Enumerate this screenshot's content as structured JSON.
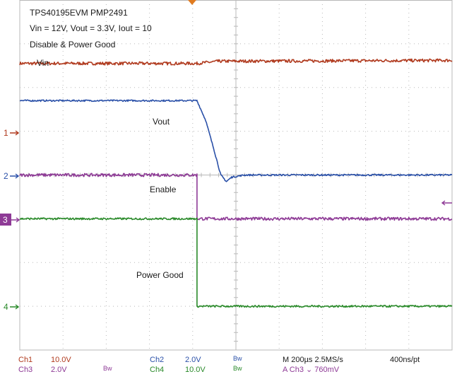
{
  "chart_data": {
    "type": "line",
    "title": "TPS40195EVM PMP2491",
    "subtitle": "Vin = 12V, Vout = 3.3V, Iout = 10",
    "subtitle2": "Disable & Power Good",
    "xlim": [
      0,
      10
    ],
    "ylim": [
      -4,
      4
    ],
    "grid": true,
    "series": [
      {
        "name": "Vin",
        "color": "#b03a1e",
        "marker": "",
        "points": [
          [
            0,
            2.55
          ],
          [
            4.1,
            2.55
          ],
          [
            4.6,
            2.6
          ],
          [
            10,
            2.62
          ]
        ]
      },
      {
        "name": "Vout",
        "color": "#2a50a8",
        "marker": "1",
        "points": [
          [
            0,
            1.7
          ],
          [
            4.1,
            1.7
          ],
          [
            4.3,
            1.25
          ],
          [
            4.5,
            0.55
          ],
          [
            4.65,
            0.0
          ],
          [
            4.78,
            -0.15
          ],
          [
            4.9,
            -0.05
          ],
          [
            5.2,
            0.0
          ],
          [
            10,
            0.0
          ]
        ]
      },
      {
        "name": "Enable",
        "color": "#8e3a96",
        "marker": "2",
        "points": [
          [
            0,
            0.0
          ],
          [
            4.1,
            0.0
          ],
          [
            4.1,
            -1.0
          ],
          [
            10,
            -1.0
          ]
        ]
      },
      {
        "name": "Power Good",
        "color": "#2a8a2a",
        "marker": "4",
        "points": [
          [
            0,
            -1.0
          ],
          [
            4.1,
            -1.0
          ],
          [
            4.1,
            -3.0
          ],
          [
            10,
            -3.0
          ]
        ]
      }
    ],
    "channel_markers": {
      "ch3": "3"
    }
  },
  "footer": {
    "ch1": "Ch1",
    "ch1_scale": "10.0V",
    "ch2": "Ch2",
    "ch2_scale": "2.0V",
    "bw1": "Bw",
    "ch3": "Ch3",
    "ch3_scale": "2.0V",
    "bw3": "Bw",
    "ch4": "Ch4",
    "ch4_scale": "10.0V",
    "bw4": "Bw",
    "timebase": "M 200µs 2.5MS/s",
    "resolution": "400ns/pt",
    "trigger": "A  Ch3  ⌄  760mV"
  },
  "colors": {
    "ch1": "#b03a1e",
    "ch2": "#2a50a8",
    "ch3": "#8e3a96",
    "ch4": "#2a8a2a",
    "grid": "#b8b8b8",
    "trigger": "#e07b20"
  }
}
